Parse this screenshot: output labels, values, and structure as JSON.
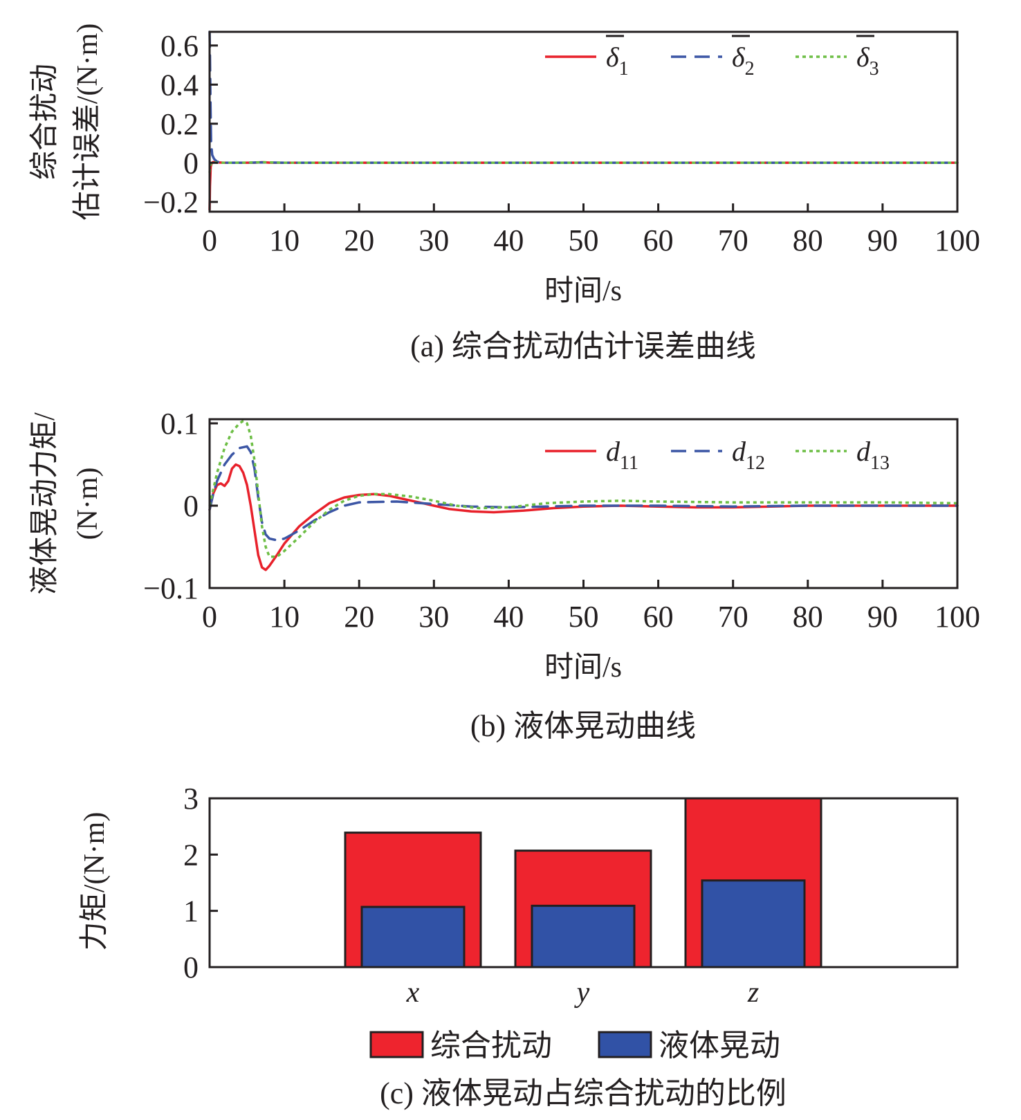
{
  "chart_data": [
    {
      "id": "a",
      "type": "line",
      "caption": "(a) 综合扰动估计误差曲线",
      "xlabel": "时间/s",
      "ylabel_lines": [
        "综合扰动",
        "估计误差/(N·m)"
      ],
      "xlim": [
        0,
        100
      ],
      "ylim": [
        -0.25,
        0.67
      ],
      "xticks": [
        0,
        10,
        20,
        30,
        40,
        50,
        60,
        70,
        80,
        90,
        100
      ],
      "yticks": [
        -0.2,
        0,
        0.2,
        0.4,
        0.6
      ],
      "ytick_labels": [
        "−0.2",
        "0",
        "0.2",
        "0.4",
        "0.6"
      ],
      "grid": false,
      "legend_position": "top-right",
      "series": [
        {
          "base": "δ",
          "sub": "1",
          "overline": true,
          "color": "#e8212b",
          "dash": "solid",
          "x": [
            0,
            0.05,
            0.15,
            0.3,
            0.5,
            1,
            2,
            4,
            6,
            7,
            8,
            10,
            20,
            50,
            100
          ],
          "y": [
            -0.24,
            -0.12,
            -0.02,
            0,
            0.004,
            0.002,
            0,
            0,
            0.001,
            0.003,
            0.001,
            0,
            0,
            0,
            0
          ]
        },
        {
          "base": "δ",
          "sub": "2",
          "overline": true,
          "color": "#3c56a5",
          "dash": "dashed",
          "x": [
            0,
            0.05,
            0.12,
            0.2,
            0.35,
            0.6,
            1,
            2,
            4,
            7,
            10,
            20,
            50,
            100
          ],
          "y": [
            0.67,
            0.55,
            0.3,
            0.1,
            0.04,
            0.02,
            0.005,
            0,
            0,
            0.002,
            0,
            0,
            0,
            0
          ]
        },
        {
          "base": "δ",
          "sub": "3",
          "overline": true,
          "color": "#6dbe45",
          "dash": "dotted",
          "x": [
            0,
            0.08,
            0.2,
            0.4,
            0.7,
            1,
            2,
            5,
            7,
            10,
            20,
            50,
            100
          ],
          "y": [
            -0.05,
            -0.02,
            0,
            0.005,
            0.003,
            0,
            0,
            0.001,
            0.003,
            0,
            0,
            0,
            0
          ]
        }
      ]
    },
    {
      "id": "b",
      "type": "line",
      "caption": "(b) 液体晃动曲线",
      "xlabel": "时间/s",
      "ylabel_lines": [
        "液体晃动力矩/",
        "(N·m)"
      ],
      "xlim": [
        0,
        100
      ],
      "ylim": [
        -0.1,
        0.105
      ],
      "xticks": [
        0,
        10,
        20,
        30,
        40,
        50,
        60,
        70,
        80,
        90,
        100
      ],
      "yticks": [
        -0.1,
        0,
        0.1
      ],
      "ytick_labels": [
        "−0.1",
        "0",
        "0.1"
      ],
      "grid": false,
      "legend_position": "top-right",
      "series": [
        {
          "base": "d",
          "sub": "11",
          "overline": false,
          "color": "#e8212b",
          "dash": "solid",
          "x": [
            0,
            0.5,
            1,
            1.5,
            2,
            2.5,
            3,
            3.5,
            4,
            4.5,
            5,
            5.5,
            6,
            6.5,
            7,
            7.5,
            8,
            9,
            10,
            12,
            14,
            16,
            18,
            20,
            22,
            24,
            26,
            28,
            30,
            32,
            35,
            38,
            42,
            46,
            50,
            55,
            60,
            65,
            70,
            75,
            80,
            85,
            90,
            95,
            100
          ],
          "y": [
            -0.005,
            0.015,
            0.025,
            0.027,
            0.024,
            0.03,
            0.045,
            0.05,
            0.048,
            0.04,
            0.025,
            0.0,
            -0.03,
            -0.06,
            -0.075,
            -0.078,
            -0.073,
            -0.06,
            -0.046,
            -0.025,
            -0.01,
            0.003,
            0.01,
            0.013,
            0.014,
            0.012,
            0.008,
            0.004,
            0.0,
            -0.004,
            -0.007,
            -0.008,
            -0.006,
            -0.003,
            -0.001,
            0.0,
            -0.001,
            -0.002,
            -0.002,
            -0.001,
            0.0,
            0.0,
            0.0,
            0.0,
            0.0
          ]
        },
        {
          "base": "d",
          "sub": "12",
          "overline": false,
          "color": "#3c56a5",
          "dash": "dashed",
          "x": [
            0,
            0.5,
            1,
            2,
            3,
            4,
            5,
            5.5,
            6,
            6.5,
            7,
            7.5,
            8,
            9,
            10,
            12,
            14,
            16,
            18,
            20,
            25,
            30,
            35,
            40,
            50,
            60,
            70,
            80,
            90,
            100
          ],
          "y": [
            -0.005,
            0.015,
            0.03,
            0.05,
            0.062,
            0.07,
            0.072,
            0.065,
            0.045,
            0.01,
            -0.02,
            -0.035,
            -0.04,
            -0.042,
            -0.04,
            -0.03,
            -0.018,
            -0.008,
            0.0,
            0.004,
            0.005,
            0.002,
            -0.001,
            -0.002,
            0.0,
            0.0,
            -0.001,
            0.0,
            0.0,
            0.0
          ]
        },
        {
          "base": "d",
          "sub": "13",
          "overline": false,
          "color": "#6dbe45",
          "dash": "dotted",
          "x": [
            0,
            0.5,
            1,
            2,
            3,
            4,
            4.5,
            5,
            5.5,
            6,
            6.5,
            7,
            7.5,
            8,
            9,
            10,
            12,
            14,
            16,
            18,
            20,
            22,
            24,
            27,
            30,
            33,
            36,
            40,
            45,
            50,
            55,
            60,
            70,
            80,
            90,
            100
          ],
          "y": [
            0.0,
            0.02,
            0.04,
            0.07,
            0.09,
            0.1,
            0.103,
            0.1,
            0.085,
            0.055,
            0.015,
            -0.025,
            -0.05,
            -0.062,
            -0.062,
            -0.055,
            -0.038,
            -0.02,
            -0.005,
            0.006,
            0.012,
            0.014,
            0.014,
            0.011,
            0.006,
            0.0,
            -0.003,
            -0.002,
            0.003,
            0.005,
            0.006,
            0.005,
            0.004,
            0.004,
            0.004,
            0.003
          ]
        }
      ]
    },
    {
      "id": "c",
      "type": "bar",
      "caption": "(c) 液体晃动占综合扰动的比例",
      "ylabel": "力矩/(N·m)",
      "ylim": [
        0,
        3
      ],
      "yticks": [
        0,
        1,
        2,
        3
      ],
      "categories": [
        "x",
        "y",
        "z"
      ],
      "grid": false,
      "legend_position": "bottom",
      "series": [
        {
          "name": "综合扰动",
          "color": "#ee242e",
          "values": [
            2.39,
            2.07,
            3.0
          ]
        },
        {
          "name": "液体晃动",
          "color": "#3152a6",
          "values": [
            1.07,
            1.09,
            1.54
          ]
        }
      ]
    }
  ]
}
